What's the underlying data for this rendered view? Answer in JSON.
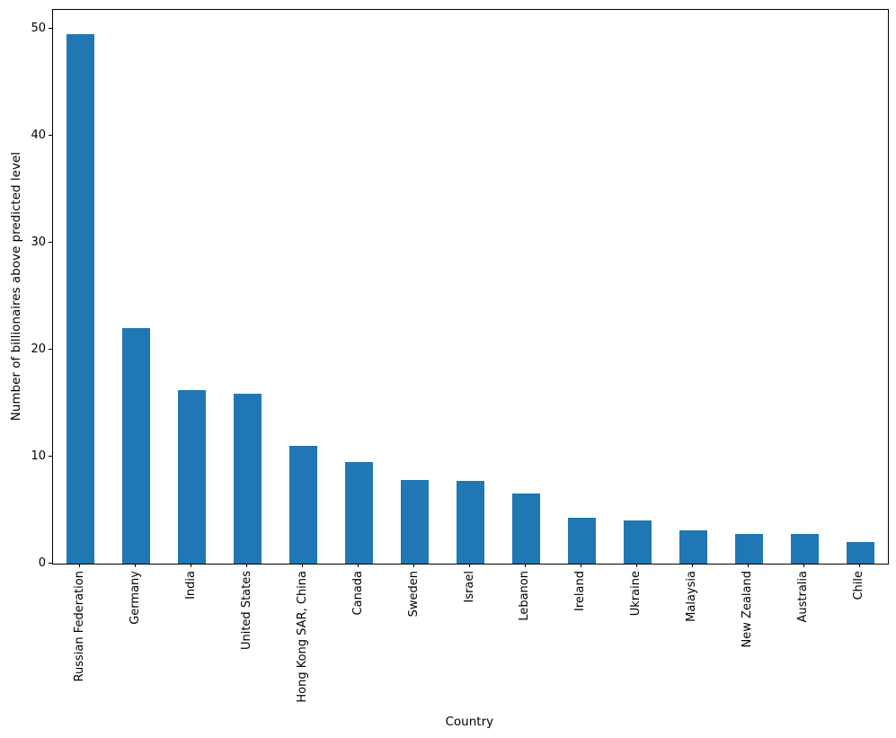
{
  "figure": {
    "background": "#ffffff",
    "text_color": "#000000"
  },
  "chart_data": {
    "type": "bar",
    "title": "",
    "xlabel": "Country",
    "ylabel": "Number of billionaires above predicted level",
    "categories": [
      "Russian Federation",
      "Germany",
      "India",
      "United States",
      "Hong Kong SAR, China",
      "Canada",
      "Sweden",
      "Israel",
      "Lebanon",
      "Ireland",
      "Ukraine",
      "Malaysia",
      "New Zealand",
      "Australia",
      "Chile"
    ],
    "values": [
      49.5,
      22.0,
      16.2,
      15.9,
      11.0,
      9.5,
      7.8,
      7.7,
      6.6,
      4.25,
      4.0,
      3.15,
      2.8,
      2.75,
      2.0
    ],
    "yticks": [
      0,
      10,
      20,
      30,
      40,
      50
    ],
    "ylim": [
      0,
      51.8
    ],
    "bar_color": "#1f77b4",
    "bar_width_ratio": 0.5,
    "grid": false,
    "legend_position": "none"
  }
}
